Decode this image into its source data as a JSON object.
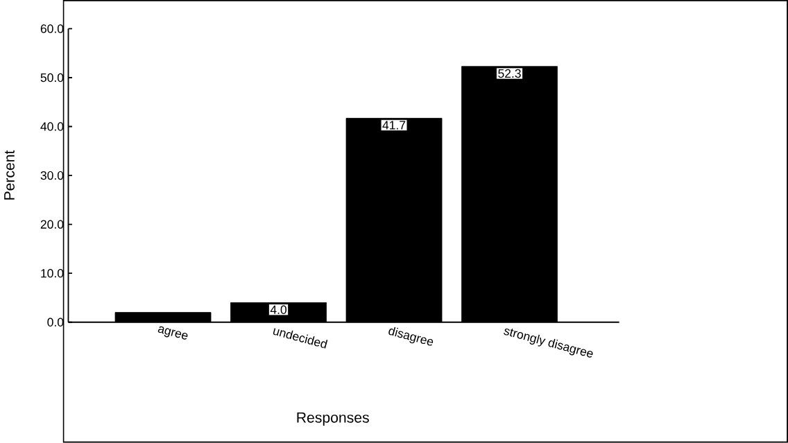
{
  "chart_data": {
    "type": "bar",
    "xlabel": "Responses",
    "ylabel": "Percent",
    "categories": [
      "agree",
      "undecided",
      "disagree",
      "strongly disagree"
    ],
    "values": [
      2.0,
      4.0,
      41.7,
      52.3
    ],
    "value_labels": [
      null,
      "4.0",
      "41.7",
      "52.3"
    ],
    "color": "#000000",
    "ylim": [
      0,
      60
    ],
    "yticks": [
      {
        "value": 0,
        "label": "0.0"
      },
      {
        "value": 10,
        "label": "10.0"
      },
      {
        "value": 20,
        "label": "20.0"
      },
      {
        "value": 30,
        "label": "30.0"
      },
      {
        "value": 40,
        "label": "40.0"
      },
      {
        "value": 50,
        "label": "50.0"
      },
      {
        "value": 60,
        "label": "60.0"
      }
    ],
    "grid": false
  }
}
